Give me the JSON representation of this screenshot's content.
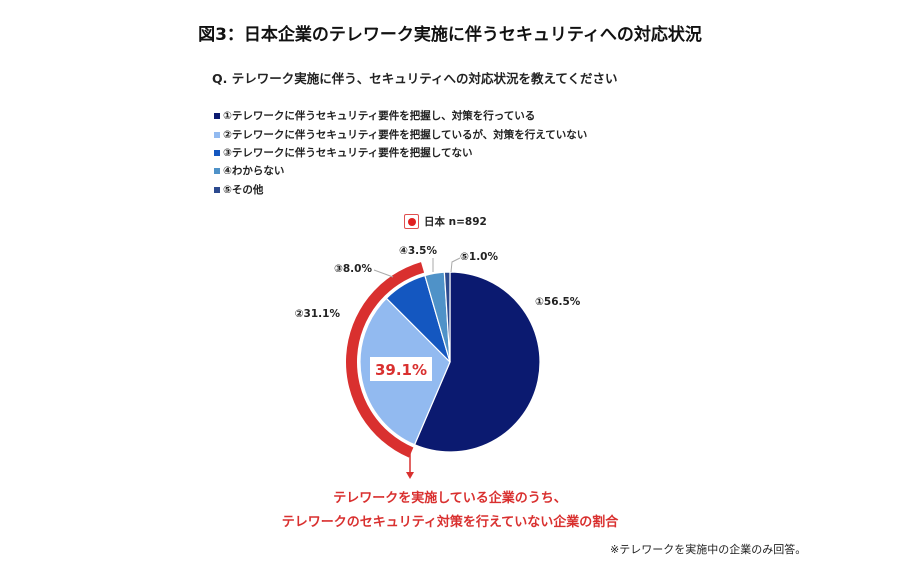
{
  "title": "図3：日本企業のテレワーク実施に伴うセキュリティへの対応状況",
  "question": "Q. テレワーク実施に伴う、セキュリティへの対応状況を教えてください",
  "series_legend": "日本 n=892",
  "highlight": {
    "value_label": "39.1%",
    "caption_line1": "テレワークを実施している企業のうち、",
    "caption_line2": "テレワークのセキュリティ対策を行えていない企業の割合",
    "color": "#d9302f"
  },
  "note": "※テレワークを実施中の企業のみ回答。",
  "chart_data": {
    "type": "pie",
    "title": "図3：日本企業のテレワーク実施に伴うセキュリティへの対応状況",
    "start": "top",
    "direction": "clockwise",
    "legend_position": "top-left",
    "slices": [
      {
        "legend": "①テレワークに伴うセキュリティ要件を把握し、対策を行っている",
        "label": "①56.5%",
        "value": 56.5,
        "color": "#0b1a70"
      },
      {
        "legend": "②テレワークに伴うセキュリティ要件を把握しているが、対策を行えていない",
        "label": "②31.1%",
        "value": 31.1,
        "color": "#92baf0"
      },
      {
        "legend": "③テレワークに伴うセキュリティ要件を把握してない",
        "label": "③8.0%",
        "value": 8.0,
        "color": "#1457c0"
      },
      {
        "legend": "④わからない",
        "label": "④3.5%",
        "value": 3.5,
        "color": "#4f92c8"
      },
      {
        "legend": "⑤その他",
        "label": "⑤1.0%",
        "value": 1.0,
        "color": "#2c4a8f"
      }
    ]
  }
}
